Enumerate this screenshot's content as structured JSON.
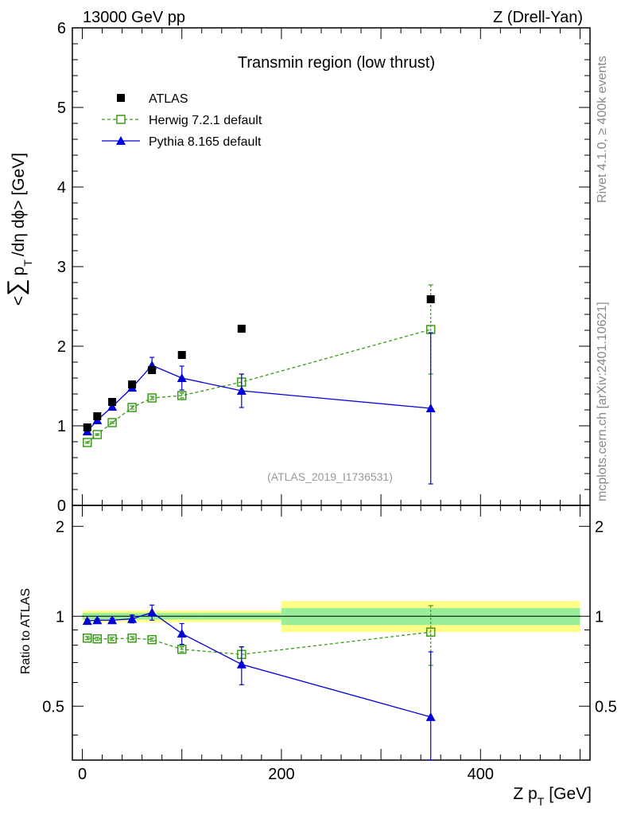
{
  "header": {
    "left": "13000 GeV pp",
    "right": "Z (Drell-Yan)"
  },
  "side_text": {
    "rivet": "Rivet 4.1.0, ≥ 400k events",
    "mcplots": "mcplots.cern.ch [arXiv:2401.10621]"
  },
  "chart_data": [
    {
      "type": "scatter",
      "panel": "main",
      "title": "Transmin region (low thrust)",
      "watermark": "(ATLAS_2019_I1736531)",
      "ylabel": "<∑ p_T /dη dϕ> [GeV]",
      "ylabel_parts": {
        "open": "<",
        "sum": "∑",
        "p": "p",
        "sub": "T",
        "rest": "/dη dϕ> [GeV]"
      },
      "xlim": [
        -10,
        510
      ],
      "ylim": [
        0,
        6
      ],
      "yticks": [
        0,
        1,
        2,
        3,
        4,
        5,
        6
      ],
      "legend": {
        "position": "top-left",
        "entries": [
          "ATLAS",
          "Herwig 7.2.1 default",
          "Pythia 8.165 default"
        ]
      },
      "series": [
        {
          "name": "ATLAS",
          "color": "#000000",
          "marker": "filled-square",
          "x": [
            5,
            15,
            30,
            50,
            70,
            100,
            160,
            350
          ],
          "y": [
            0.98,
            1.12,
            1.3,
            1.52,
            1.7,
            1.89,
            2.22,
            2.59
          ],
          "yerr": [
            0.01,
            0.01,
            0.01,
            0.02,
            0.02,
            0.03,
            0.02,
            0.03
          ]
        },
        {
          "name": "Herwig 7.2.1 default",
          "color": "#3a9a1a",
          "marker": "open-square",
          "line": "dashed",
          "x": [
            5,
            15,
            30,
            50,
            70,
            100,
            160,
            350
          ],
          "y": [
            0.79,
            0.89,
            1.04,
            1.23,
            1.35,
            1.38,
            1.55,
            2.21
          ],
          "yerr": [
            0.01,
            0.01,
            0.01,
            0.02,
            0.02,
            0.03,
            0.1,
            0.56
          ]
        },
        {
          "name": "Pythia 8.165 default",
          "color": "#0000dd",
          "marker": "filled-triangle",
          "line": "solid",
          "x": [
            5,
            15,
            30,
            50,
            70,
            100,
            160,
            350
          ],
          "y": [
            0.93,
            1.07,
            1.24,
            1.48,
            1.76,
            1.6,
            1.44,
            1.22
          ],
          "yerr": [
            0.01,
            0.02,
            0.02,
            0.04,
            0.1,
            0.15,
            0.21,
            0.95
          ]
        }
      ]
    },
    {
      "type": "scatter",
      "panel": "ratio",
      "ylabel": "Ratio to ATLAS",
      "xlabel": "Z p_T [GeV]",
      "xlabel_parts": {
        "main": "Z p",
        "sub": "T",
        "unit": "[GeV]"
      },
      "xlim": [
        -10,
        510
      ],
      "ylim": [
        0.33,
        2.35
      ],
      "yticks": [
        0.5,
        1,
        2
      ],
      "ytick_labels": [
        "0.5",
        "1",
        "2"
      ],
      "xticks": [
        0,
        200,
        400
      ],
      "xtick_labels": [
        "0",
        "200",
        "400"
      ],
      "bands": [
        {
          "x0": 0,
          "x1": 120,
          "yellow": [
            0.955,
            1.045
          ],
          "green": [
            0.975,
            1.025
          ]
        },
        {
          "x0": 120,
          "x1": 200,
          "yellow": [
            0.955,
            1.045
          ],
          "green": [
            0.975,
            1.025
          ]
        },
        {
          "x0": 200,
          "x1": 500,
          "yellow": [
            0.885,
            1.125
          ],
          "green": [
            0.935,
            1.065
          ]
        }
      ],
      "series": [
        {
          "name": "Herwig 7.2.1 default",
          "color": "#3a9a1a",
          "marker": "open-square",
          "line": "dashed",
          "x": [
            5,
            15,
            30,
            50,
            70,
            100,
            160,
            350
          ],
          "y": [
            0.845,
            0.84,
            0.84,
            0.845,
            0.835,
            0.775,
            0.745,
            0.885
          ],
          "yerr": [
            0.01,
            0.01,
            0.01,
            0.01,
            0.01,
            0.015,
            0.045,
            0.2
          ]
        },
        {
          "name": "Pythia 8.165 default",
          "color": "#0000dd",
          "marker": "filled-triangle",
          "line": "solid",
          "x": [
            5,
            15,
            30,
            50,
            70,
            100,
            160,
            350
          ],
          "y": [
            0.965,
            0.97,
            0.97,
            0.98,
            1.03,
            0.875,
            0.69,
            0.46
          ],
          "yerr": [
            0.01,
            0.01,
            0.015,
            0.03,
            0.06,
            0.07,
            0.1,
            0.3
          ]
        }
      ]
    }
  ]
}
